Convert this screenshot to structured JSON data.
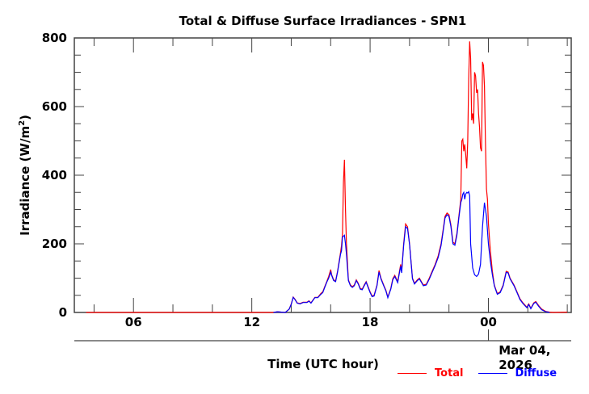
{
  "chart_data": {
    "type": "line",
    "title": "Total & Diffuse Surface Irradiances - SPN1",
    "xlabel": "Time (UTC hour)",
    "ylabel": "Irradiance (W/m",
    "ylabel_sup": "2",
    "ylabel_close": ")",
    "date_label": "Mar 04, 2026",
    "date_label_hour": 24,
    "xlim": [
      3.0,
      28.2
    ],
    "ylim": [
      0,
      800
    ],
    "x_unit": "hours since 00 UTC Mar 03, 2026",
    "x_ticks": [
      {
        "hour": 6,
        "label": "06"
      },
      {
        "hour": 12,
        "label": "12"
      },
      {
        "hour": 18,
        "label": "18"
      },
      {
        "hour": 24,
        "label": "00"
      }
    ],
    "x_minor_ticks": [
      4,
      8,
      10,
      14,
      16,
      20,
      22,
      26,
      28
    ],
    "y_ticks": [
      {
        "value": 0,
        "label": "0"
      },
      {
        "value": 200,
        "label": "200"
      },
      {
        "value": 400,
        "label": "400"
      },
      {
        "value": 600,
        "label": "600"
      },
      {
        "value": 800,
        "label": "800"
      }
    ],
    "y_minor_step": 50,
    "grid": false,
    "legend_position": "bottom-right",
    "series": [
      {
        "name": "Total",
        "color": "#ff0000",
        "points": [
          [
            3.6,
            0
          ],
          [
            13.1,
            0
          ],
          [
            13.3,
            2
          ],
          [
            13.5,
            1
          ],
          [
            13.7,
            0
          ],
          [
            13.9,
            10
          ],
          [
            14.0,
            25
          ],
          [
            14.1,
            45
          ],
          [
            14.2,
            38
          ],
          [
            14.3,
            28
          ],
          [
            14.45,
            26
          ],
          [
            14.6,
            30
          ],
          [
            14.8,
            30
          ],
          [
            14.9,
            34
          ],
          [
            15.0,
            28
          ],
          [
            15.1,
            36
          ],
          [
            15.2,
            44
          ],
          [
            15.35,
            44
          ],
          [
            15.5,
            55
          ],
          [
            15.6,
            60
          ],
          [
            15.7,
            75
          ],
          [
            15.8,
            90
          ],
          [
            15.9,
            105
          ],
          [
            16.0,
            125
          ],
          [
            16.05,
            110
          ],
          [
            16.15,
            95
          ],
          [
            16.25,
            92
          ],
          [
            16.35,
            120
          ],
          [
            16.5,
            175
          ],
          [
            16.55,
            195
          ],
          [
            16.6,
            230
          ],
          [
            16.65,
            380
          ],
          [
            16.7,
            445
          ],
          [
            16.75,
            300
          ],
          [
            16.8,
            200
          ],
          [
            16.9,
            95
          ],
          [
            17.0,
            80
          ],
          [
            17.1,
            75
          ],
          [
            17.2,
            80
          ],
          [
            17.3,
            95
          ],
          [
            17.4,
            85
          ],
          [
            17.5,
            70
          ],
          [
            17.6,
            68
          ],
          [
            17.7,
            80
          ],
          [
            17.8,
            90
          ],
          [
            17.9,
            75
          ],
          [
            18.0,
            60
          ],
          [
            18.1,
            48
          ],
          [
            18.2,
            50
          ],
          [
            18.35,
            80
          ],
          [
            18.45,
            122
          ],
          [
            18.55,
            100
          ],
          [
            18.7,
            78
          ],
          [
            18.8,
            65
          ],
          [
            18.9,
            45
          ],
          [
            19.05,
            70
          ],
          [
            19.15,
            98
          ],
          [
            19.25,
            108
          ],
          [
            19.4,
            90
          ],
          [
            19.55,
            140
          ],
          [
            19.6,
            120
          ],
          [
            19.7,
            200
          ],
          [
            19.8,
            258
          ],
          [
            19.9,
            250
          ],
          [
            20.0,
            200
          ],
          [
            20.15,
            100
          ],
          [
            20.25,
            85
          ],
          [
            20.4,
            95
          ],
          [
            20.5,
            100
          ],
          [
            20.6,
            90
          ],
          [
            20.7,
            80
          ],
          [
            20.85,
            82
          ],
          [
            21.0,
            100
          ],
          [
            21.15,
            120
          ],
          [
            21.3,
            140
          ],
          [
            21.45,
            165
          ],
          [
            21.6,
            200
          ],
          [
            21.7,
            240
          ],
          [
            21.8,
            280
          ],
          [
            21.9,
            290
          ],
          [
            22.0,
            285
          ],
          [
            22.1,
            255
          ],
          [
            22.2,
            205
          ],
          [
            22.3,
            200
          ],
          [
            22.4,
            230
          ],
          [
            22.5,
            280
          ],
          [
            22.6,
            330
          ],
          [
            22.65,
            500
          ],
          [
            22.7,
            505
          ],
          [
            22.75,
            470
          ],
          [
            22.8,
            490
          ],
          [
            22.85,
            460
          ],
          [
            22.9,
            420
          ],
          [
            22.95,
            500
          ],
          [
            23.0,
            680
          ],
          [
            23.05,
            790
          ],
          [
            23.1,
            740
          ],
          [
            23.15,
            560
          ],
          [
            23.2,
            580
          ],
          [
            23.25,
            550
          ],
          [
            23.3,
            700
          ],
          [
            23.35,
            690
          ],
          [
            23.4,
            640
          ],
          [
            23.45,
            650
          ],
          [
            23.5,
            580
          ],
          [
            23.55,
            540
          ],
          [
            23.6,
            480
          ],
          [
            23.65,
            470
          ],
          [
            23.7,
            730
          ],
          [
            23.75,
            720
          ],
          [
            23.8,
            660
          ],
          [
            23.85,
            500
          ],
          [
            23.9,
            360
          ],
          [
            23.95,
            330
          ],
          [
            24.0,
            260
          ],
          [
            24.1,
            180
          ],
          [
            24.2,
            120
          ],
          [
            24.3,
            80
          ],
          [
            24.45,
            55
          ],
          [
            24.6,
            60
          ],
          [
            24.75,
            80
          ],
          [
            24.9,
            120
          ],
          [
            25.0,
            118
          ],
          [
            25.1,
            100
          ],
          [
            25.3,
            80
          ],
          [
            25.45,
            60
          ],
          [
            25.6,
            40
          ],
          [
            25.75,
            28
          ],
          [
            25.85,
            22
          ],
          [
            25.95,
            15
          ],
          [
            26.05,
            25
          ],
          [
            26.15,
            12
          ],
          [
            26.3,
            28
          ],
          [
            26.4,
            32
          ],
          [
            26.55,
            20
          ],
          [
            26.7,
            10
          ],
          [
            26.9,
            3
          ],
          [
            27.1,
            1
          ],
          [
            27.3,
            0
          ],
          [
            28.0,
            1
          ]
        ]
      },
      {
        "name": "Diffuse",
        "color": "#0000ff",
        "points": [
          [
            13.1,
            0
          ],
          [
            13.3,
            2
          ],
          [
            13.5,
            1
          ],
          [
            13.7,
            0
          ],
          [
            13.9,
            10
          ],
          [
            14.0,
            24
          ],
          [
            14.1,
            44
          ],
          [
            14.2,
            37
          ],
          [
            14.3,
            27
          ],
          [
            14.45,
            25
          ],
          [
            14.6,
            29
          ],
          [
            14.8,
            29
          ],
          [
            14.9,
            33
          ],
          [
            15.0,
            27
          ],
          [
            15.1,
            35
          ],
          [
            15.2,
            43
          ],
          [
            15.35,
            43
          ],
          [
            15.5,
            53
          ],
          [
            15.6,
            58
          ],
          [
            15.7,
            73
          ],
          [
            15.8,
            88
          ],
          [
            15.9,
            100
          ],
          [
            16.0,
            118
          ],
          [
            16.05,
            108
          ],
          [
            16.15,
            93
          ],
          [
            16.25,
            90
          ],
          [
            16.35,
            118
          ],
          [
            16.5,
            170
          ],
          [
            16.55,
            180
          ],
          [
            16.6,
            220
          ],
          [
            16.65,
            222
          ],
          [
            16.7,
            225
          ],
          [
            16.75,
            200
          ],
          [
            16.8,
            170
          ],
          [
            16.9,
            93
          ],
          [
            17.0,
            78
          ],
          [
            17.1,
            73
          ],
          [
            17.2,
            78
          ],
          [
            17.3,
            93
          ],
          [
            17.4,
            83
          ],
          [
            17.5,
            68
          ],
          [
            17.6,
            66
          ],
          [
            17.7,
            78
          ],
          [
            17.8,
            88
          ],
          [
            17.9,
            73
          ],
          [
            18.0,
            58
          ],
          [
            18.1,
            46
          ],
          [
            18.2,
            48
          ],
          [
            18.35,
            78
          ],
          [
            18.45,
            118
          ],
          [
            18.55,
            98
          ],
          [
            18.7,
            76
          ],
          [
            18.8,
            63
          ],
          [
            18.9,
            43
          ],
          [
            19.05,
            68
          ],
          [
            19.15,
            95
          ],
          [
            19.25,
            105
          ],
          [
            19.4,
            87
          ],
          [
            19.55,
            135
          ],
          [
            19.6,
            115
          ],
          [
            19.7,
            195
          ],
          [
            19.8,
            250
          ],
          [
            19.9,
            245
          ],
          [
            20.0,
            198
          ],
          [
            20.15,
            98
          ],
          [
            20.25,
            83
          ],
          [
            20.4,
            93
          ],
          [
            20.5,
            98
          ],
          [
            20.6,
            88
          ],
          [
            20.7,
            78
          ],
          [
            20.85,
            80
          ],
          [
            21.0,
            97
          ],
          [
            21.15,
            117
          ],
          [
            21.3,
            137
          ],
          [
            21.45,
            160
          ],
          [
            21.6,
            195
          ],
          [
            21.7,
            235
          ],
          [
            21.8,
            275
          ],
          [
            21.9,
            285
          ],
          [
            22.0,
            280
          ],
          [
            22.1,
            250
          ],
          [
            22.2,
            200
          ],
          [
            22.3,
            196
          ],
          [
            22.4,
            225
          ],
          [
            22.5,
            275
          ],
          [
            22.6,
            320
          ],
          [
            22.65,
            330
          ],
          [
            22.7,
            345
          ],
          [
            22.75,
            350
          ],
          [
            22.8,
            330
          ],
          [
            22.85,
            345
          ],
          [
            22.9,
            350
          ],
          [
            22.95,
            348
          ],
          [
            23.0,
            352
          ],
          [
            23.05,
            340
          ],
          [
            23.1,
            200
          ],
          [
            23.2,
            130
          ],
          [
            23.3,
            110
          ],
          [
            23.4,
            105
          ],
          [
            23.5,
            112
          ],
          [
            23.6,
            140
          ],
          [
            23.7,
            250
          ],
          [
            23.8,
            320
          ],
          [
            23.9,
            280
          ],
          [
            24.0,
            200
          ],
          [
            24.1,
            150
          ],
          [
            24.2,
            110
          ],
          [
            24.3,
            78
          ],
          [
            24.45,
            53
          ],
          [
            24.6,
            58
          ],
          [
            24.75,
            78
          ],
          [
            24.9,
            117
          ],
          [
            25.0,
            115
          ],
          [
            25.1,
            98
          ],
          [
            25.3,
            78
          ],
          [
            25.45,
            58
          ],
          [
            25.6,
            38
          ],
          [
            25.75,
            26
          ],
          [
            25.85,
            20
          ],
          [
            25.95,
            14
          ],
          [
            26.05,
            23
          ],
          [
            26.15,
            11
          ],
          [
            26.3,
            26
          ],
          [
            26.4,
            30
          ],
          [
            26.55,
            18
          ],
          [
            26.7,
            8
          ],
          [
            26.9,
            2
          ],
          [
            27.1,
            0
          ]
        ]
      }
    ]
  },
  "legend": {
    "items": [
      {
        "label": "Total",
        "color": "#ff0000"
      },
      {
        "label": "Diffuse",
        "color": "#0000ff"
      }
    ]
  }
}
